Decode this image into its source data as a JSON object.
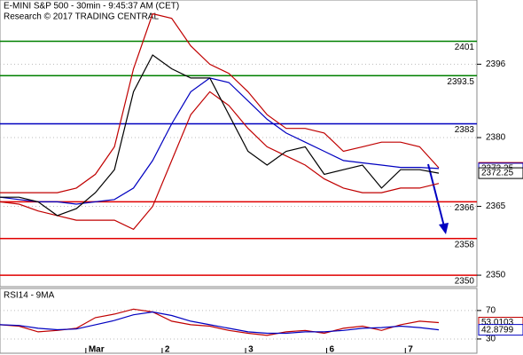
{
  "chart_data": [
    {
      "type": "line",
      "title": "E-MINI S&P 500 - 30min - 9:45:37 AM (CET)",
      "subtitle": "Research © 2017 TRADING CENTRAL",
      "x": [
        0,
        4,
        8,
        12,
        16,
        20,
        24,
        28,
        32,
        36,
        40,
        44,
        48,
        52,
        56,
        60,
        64,
        68,
        72,
        76,
        80,
        84,
        88,
        92
      ],
      "xlim": [
        0,
        100
      ],
      "ylim": [
        2347.5,
        2410
      ],
      "yticks": [
        2350,
        2365,
        2380,
        2396
      ],
      "grid": true,
      "series": [
        {
          "color": "#c00000",
          "values": [
            2368,
            2368,
            2368,
            2368,
            2369,
            2372,
            2378,
            2395,
            2407,
            2406,
            2400,
            2396,
            2394,
            2390,
            2385,
            2382,
            2382,
            2381,
            2377,
            2378,
            2379,
            2379,
            2378,
            2373.4
          ]
        },
        {
          "color": "#c00000",
          "values": [
            2366,
            2365.5,
            2364,
            2363,
            2362,
            2362,
            2362,
            2360,
            2365,
            2375,
            2385,
            2390,
            2387,
            2382,
            2378,
            2376,
            2374,
            2371,
            2369,
            2368,
            2368,
            2369,
            2369,
            2370
          ]
        },
        {
          "color": "#0000c0",
          "values": [
            2367,
            2366.5,
            2366,
            2366,
            2365.5,
            2366,
            2366.5,
            2369,
            2375,
            2383,
            2390,
            2393,
            2392,
            2388,
            2384,
            2381,
            2379,
            2377,
            2375,
            2374.5,
            2374,
            2373.5,
            2373.5,
            2373.25
          ]
        },
        {
          "color": "#000000",
          "values": [
            2367,
            2367,
            2366,
            2363,
            2364.5,
            2368,
            2373,
            2390,
            2398,
            2395,
            2393,
            2393,
            2385,
            2377,
            2374,
            2377,
            2378,
            2372,
            2373,
            2374,
            2369,
            2373,
            2373,
            2372.25
          ]
        }
      ],
      "levels": [
        {
          "value": 2401,
          "color": "#008000"
        },
        {
          "value": 2393.5,
          "color": "#008000"
        },
        {
          "value": 2383,
          "color": "#0000c0"
        },
        {
          "value": 2366,
          "color": "#e00000"
        },
        {
          "value": 2358,
          "color": "#e00000"
        },
        {
          "value": 2350,
          "color": "#e00000"
        }
      ]
    },
    {
      "type": "line",
      "title": "RSI14 - 9MA",
      "x": [
        0,
        4,
        8,
        12,
        16,
        20,
        24,
        28,
        32,
        36,
        40,
        44,
        48,
        52,
        56,
        60,
        64,
        68,
        72,
        76,
        80,
        84,
        88,
        92
      ],
      "xlim": [
        0,
        100
      ],
      "ylim": [
        10,
        101
      ],
      "yticks": [
        30,
        70
      ],
      "xticks": [
        {
          "value": 18,
          "label": "Mar"
        },
        {
          "value": 34,
          "label": "2"
        },
        {
          "value": 51.5,
          "label": "3"
        },
        {
          "value": 68.5,
          "label": "6"
        },
        {
          "value": 85,
          "label": "7"
        }
      ],
      "series": [
        {
          "color": "#c00000",
          "values": [
            50,
            48,
            40,
            42,
            45,
            60,
            65,
            72,
            68,
            55,
            50,
            48,
            42,
            38,
            35,
            40,
            42,
            38,
            45,
            48,
            42,
            50,
            55,
            53.0103
          ]
        },
        {
          "color": "#0000c0",
          "values": [
            50,
            49,
            45,
            43,
            44,
            50,
            56,
            64,
            68,
            63,
            55,
            50,
            45,
            40,
            38,
            38,
            40,
            40,
            42,
            45,
            46,
            48,
            46,
            42.8799
          ]
        }
      ]
    }
  ]
}
